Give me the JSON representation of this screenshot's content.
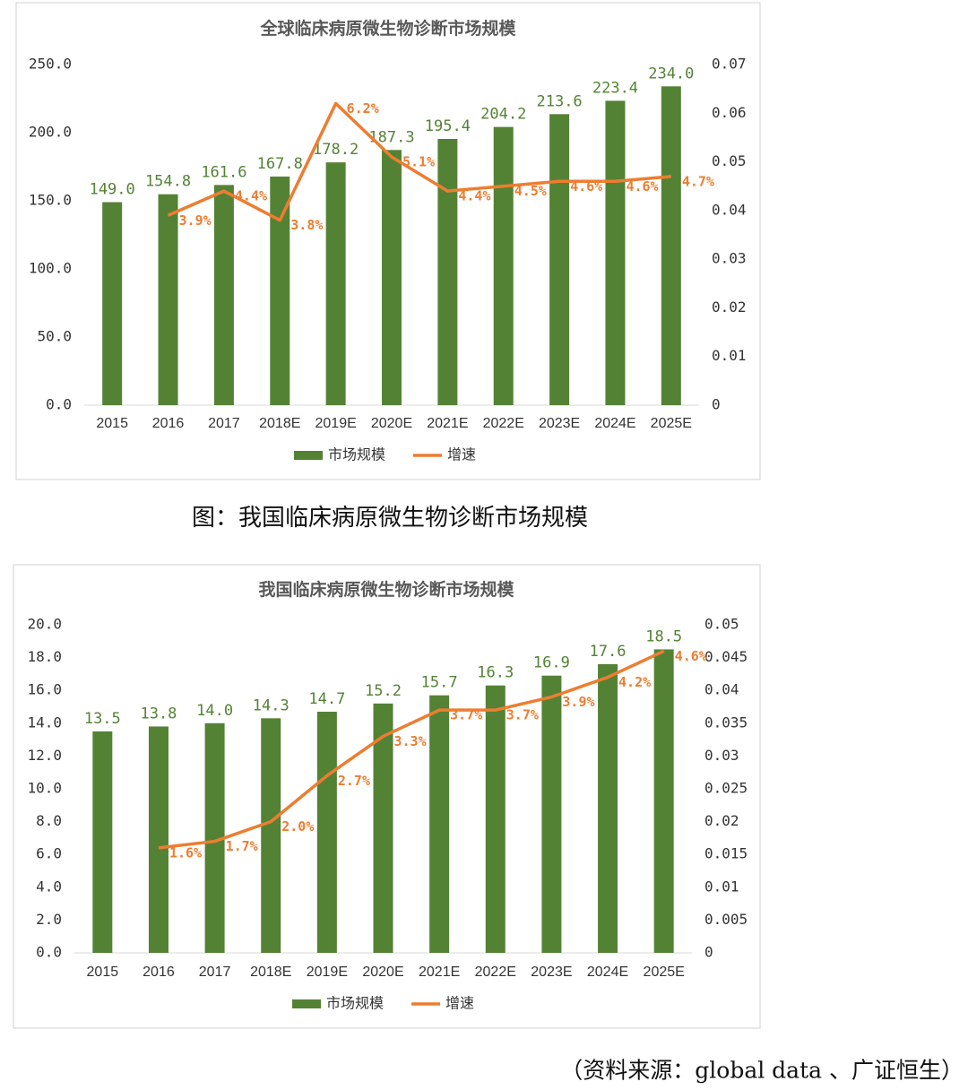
{
  "chart_data": [
    {
      "type": "bar",
      "title": "全球临床病原微生物诊断市场规模",
      "categories": [
        "2015",
        "2016",
        "2017",
        "2018E",
        "2019E",
        "2020E",
        "2021E",
        "2022E",
        "2023E",
        "2024E",
        "2025E"
      ],
      "series": [
        {
          "name": "市场规模",
          "color": "#548235",
          "values": [
            149.0,
            154.8,
            161.6,
            167.8,
            178.2,
            187.3,
            195.4,
            204.2,
            213.6,
            223.4,
            234.0
          ],
          "value_labels": [
            "149.0",
            "154.8",
            "161.6",
            "167.8",
            "178.2",
            "187.3",
            "195.4",
            "204.2",
            "213.6",
            "223.4",
            "234.0"
          ]
        },
        {
          "name": "增速",
          "color": "#ed7d31",
          "type": "line",
          "axis": "y2",
          "values": [
            null,
            0.039,
            0.044,
            0.038,
            0.062,
            0.051,
            0.044,
            0.045,
            0.046,
            0.046,
            0.047
          ],
          "value_labels": [
            null,
            "3.9%",
            "4.4%",
            "3.8%",
            "6.2%",
            "5.1%",
            "4.4%",
            "4.5%",
            "4.6%",
            "4.6%",
            "4.7%"
          ]
        }
      ],
      "ylim": [
        0,
        250
      ],
      "yticks": [
        {
          "value": 0,
          "label": "0.0"
        },
        {
          "value": 50,
          "label": "50.0"
        },
        {
          "value": 100,
          "label": "100.0"
        },
        {
          "value": 150,
          "label": "150.0"
        },
        {
          "value": 200,
          "label": "200.0"
        },
        {
          "value": 250,
          "label": "250.0"
        }
      ],
      "y2lim": [
        0,
        0.07
      ],
      "y2ticks": [
        0,
        0.01,
        0.02,
        0.03,
        0.04,
        0.05,
        0.06,
        0.07
      ],
      "legend": "bottom"
    },
    {
      "type": "bar",
      "title": "我国临床病原微生物诊断市场规模",
      "categories": [
        "2015",
        "2016",
        "2017",
        "2018E",
        "2019E",
        "2020E",
        "2021E",
        "2022E",
        "2023E",
        "2024E",
        "2025E"
      ],
      "series": [
        {
          "name": "市场规模",
          "color": "#548235",
          "values": [
            13.5,
            13.8,
            14.0,
            14.3,
            14.7,
            15.2,
            15.7,
            16.3,
            16.9,
            17.6,
            18.5
          ],
          "value_labels": [
            "13.5",
            "13.8",
            "14.0",
            "14.3",
            "14.7",
            "15.2",
            "15.7",
            "16.3",
            "16.9",
            "17.6",
            "18.5"
          ]
        },
        {
          "name": "增速",
          "color": "#ed7d31",
          "type": "line",
          "axis": "y2",
          "values": [
            null,
            0.016,
            0.017,
            0.02,
            0.027,
            0.033,
            0.037,
            0.037,
            0.039,
            0.042,
            0.046
          ],
          "value_labels": [
            null,
            "1.6%",
            "1.7%",
            "2.0%",
            "2.7%",
            "3.3%",
            "3.7%",
            "3.7%",
            "3.9%",
            "4.2%",
            "4.6%"
          ]
        }
      ],
      "ylim": [
        0,
        20
      ],
      "yticks": [
        {
          "value": 0,
          "label": "0.0"
        },
        {
          "value": 2,
          "label": "2.0"
        },
        {
          "value": 4,
          "label": "4.0"
        },
        {
          "value": 6,
          "label": "6.0"
        },
        {
          "value": 8,
          "label": "8.0"
        },
        {
          "value": 10,
          "label": "10.0"
        },
        {
          "value": 12,
          "label": "12.0"
        },
        {
          "value": 14,
          "label": "14.0"
        },
        {
          "value": 16,
          "label": "16.0"
        },
        {
          "value": 18,
          "label": "18.0"
        },
        {
          "value": 20,
          "label": "20.0"
        }
      ],
      "y2lim": [
        0,
        0.05
      ],
      "y2ticks": [
        0,
        0.005,
        0.01,
        0.015,
        0.02,
        0.025,
        0.03,
        0.035,
        0.04,
        0.045,
        0.05
      ],
      "legend": "bottom"
    }
  ],
  "caption": "图：我国临床病原微生物诊断市场规模",
  "source": "（资料来源：global data 、广证恒生）"
}
